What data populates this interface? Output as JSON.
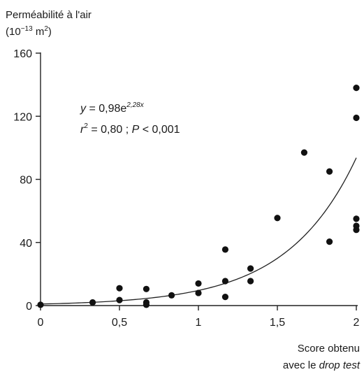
{
  "chart_data": {
    "type": "scatter",
    "ylabel_line1": "Perméabilité à l'air",
    "ylabel_line2_prefix": "(10",
    "ylabel_line2_exp": "−13",
    "ylabel_line2_mid": " m",
    "ylabel_line2_exp2": "2",
    "ylabel_line2_suffix": ")",
    "xlabel_line1": "Score obtenu",
    "xlabel_line2_prefix": "avec le ",
    "xlabel_line2_italic": "drop test",
    "xlim": [
      0,
      2
    ],
    "ylim": [
      0,
      160
    ],
    "x_ticks": [
      {
        "value": 0,
        "label": "0"
      },
      {
        "value": 0.5,
        "label": "0,5"
      },
      {
        "value": 1,
        "label": "1"
      },
      {
        "value": 1.5,
        "label": "1,5"
      },
      {
        "value": 2,
        "label": "2"
      }
    ],
    "y_ticks": [
      {
        "value": 0,
        "label": "0"
      },
      {
        "value": 40,
        "label": "40"
      },
      {
        "value": 80,
        "label": "80"
      },
      {
        "value": 120,
        "label": "120"
      },
      {
        "value": 160,
        "label": "160"
      }
    ],
    "points": [
      [
        0,
        0.5
      ],
      [
        0.33,
        2
      ],
      [
        0.5,
        11
      ],
      [
        0.5,
        3.5
      ],
      [
        0.67,
        10.5
      ],
      [
        0.67,
        2
      ],
      [
        0.67,
        0.5
      ],
      [
        0.83,
        6.5
      ],
      [
        1,
        14
      ],
      [
        1,
        8
      ],
      [
        1.17,
        35.5
      ],
      [
        1.17,
        15.5
      ],
      [
        1.17,
        5.5
      ],
      [
        1.33,
        23.5
      ],
      [
        1.33,
        15.5
      ],
      [
        1.5,
        55.5
      ],
      [
        1.67,
        97
      ],
      [
        1.83,
        85
      ],
      [
        1.83,
        40.5
      ],
      [
        2,
        138
      ],
      [
        2,
        119
      ],
      [
        2,
        55
      ],
      [
        2,
        50.5
      ],
      [
        2,
        48
      ]
    ],
    "fit": {
      "a": 0.98,
      "b": 2.28
    },
    "equation": {
      "y_italic": "y",
      "eq_text": " = 0,98e",
      "exp_text": "2,28x",
      "r_italic": "r",
      "r_exp": "2",
      "r_text": " = 0,80 ; ",
      "p_italic": "P",
      "p_text": " < 0,001"
    }
  }
}
